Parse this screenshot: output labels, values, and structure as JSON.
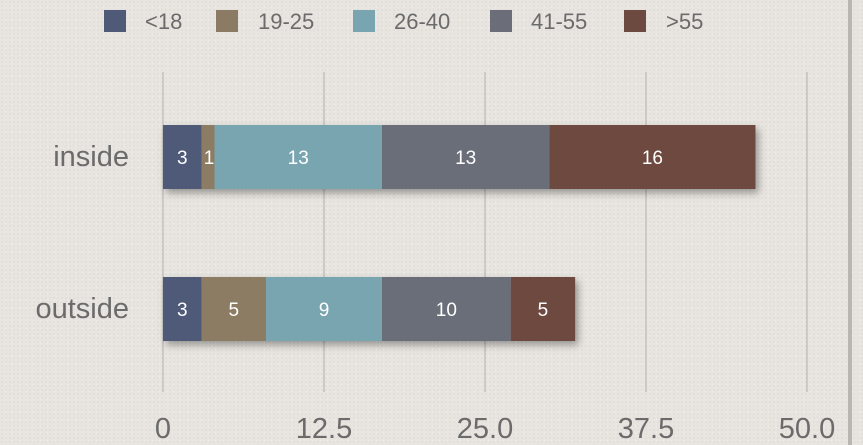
{
  "chart_data": {
    "type": "bar",
    "orientation": "horizontal",
    "stacked": true,
    "categories": [
      "inside",
      "outside"
    ],
    "series": [
      {
        "name": "<18",
        "values": [
          3,
          3
        ],
        "color": "#4f5a79"
      },
      {
        "name": "19-25",
        "values": [
          1,
          5
        ],
        "color": "#8c7b64"
      },
      {
        "name": "26-40",
        "values": [
          13,
          9
        ],
        "color": "#79a5b1"
      },
      {
        "name": "41-55",
        "values": [
          13,
          10
        ],
        "color": "#6b6e79"
      },
      {
        "name": ">55",
        "values": [
          16,
          5
        ],
        "color": "#6d4a40"
      }
    ],
    "xlim": [
      0,
      50
    ],
    "x_ticks": [
      "0",
      "12.5",
      "25.0",
      "37.5",
      "50.0"
    ],
    "grid": true,
    "legend_position": "top"
  }
}
